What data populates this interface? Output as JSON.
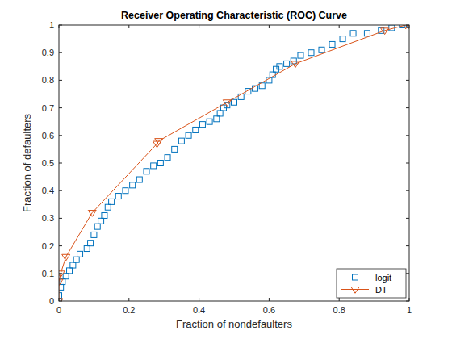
{
  "chart_data": {
    "type": "line",
    "title": "Receiver Operating Characteristic (ROC) Curve",
    "x_label": "Fraction of nondefaulters",
    "y_label": "Fraction of defaulters",
    "xlim": [
      0,
      1
    ],
    "ylim": [
      0,
      1
    ],
    "xticks": [
      0,
      0.2,
      0.4,
      0.6,
      0.8,
      1
    ],
    "yticks": [
      0,
      0.1,
      0.2,
      0.3,
      0.4,
      0.5,
      0.6,
      0.7,
      0.8,
      0.9,
      1
    ],
    "grid": false,
    "legend": "bottom-right",
    "series": [
      {
        "name": "logit",
        "color": "#0072bd",
        "marker": "square",
        "line_style": "none",
        "x": [
          0,
          0,
          0.005,
          0.01,
          0.02,
          0.03,
          0.04,
          0.05,
          0.06,
          0.08,
          0.09,
          0.1,
          0.11,
          0.12,
          0.13,
          0.14,
          0.15,
          0.17,
          0.19,
          0.21,
          0.23,
          0.25,
          0.27,
          0.29,
          0.31,
          0.33,
          0.35,
          0.37,
          0.39,
          0.41,
          0.43,
          0.45,
          0.46,
          0.47,
          0.48,
          0.5,
          0.52,
          0.54,
          0.56,
          0.58,
          0.6,
          0.61,
          0.62,
          0.63,
          0.65,
          0.67,
          0.69,
          0.72,
          0.75,
          0.78,
          0.81,
          0.84,
          0.88,
          0.92,
          0.95,
          0.98,
          1
        ],
        "values": [
          0,
          0.02,
          0.05,
          0.07,
          0.09,
          0.11,
          0.13,
          0.15,
          0.17,
          0.19,
          0.21,
          0.24,
          0.27,
          0.29,
          0.31,
          0.34,
          0.36,
          0.38,
          0.4,
          0.42,
          0.44,
          0.47,
          0.49,
          0.5,
          0.52,
          0.55,
          0.58,
          0.6,
          0.62,
          0.64,
          0.65,
          0.66,
          0.68,
          0.7,
          0.71,
          0.72,
          0.74,
          0.76,
          0.77,
          0.78,
          0.8,
          0.82,
          0.84,
          0.85,
          0.86,
          0.87,
          0.89,
          0.9,
          0.91,
          0.93,
          0.95,
          0.97,
          0.97,
          0.98,
          0.99,
          1,
          1
        ]
      },
      {
        "name": "DT",
        "color": "#d95319",
        "marker": "triangle-down",
        "line_style": "solid",
        "x": [
          0,
          0,
          0.005,
          0.02,
          0.095,
          0.28,
          0.285,
          0.48,
          0.675,
          0.93,
          0.99,
          1
        ],
        "values": [
          0,
          0.07,
          0.1,
          0.16,
          0.32,
          0.57,
          0.58,
          0.72,
          0.86,
          0.98,
          1,
          1
        ]
      }
    ]
  }
}
